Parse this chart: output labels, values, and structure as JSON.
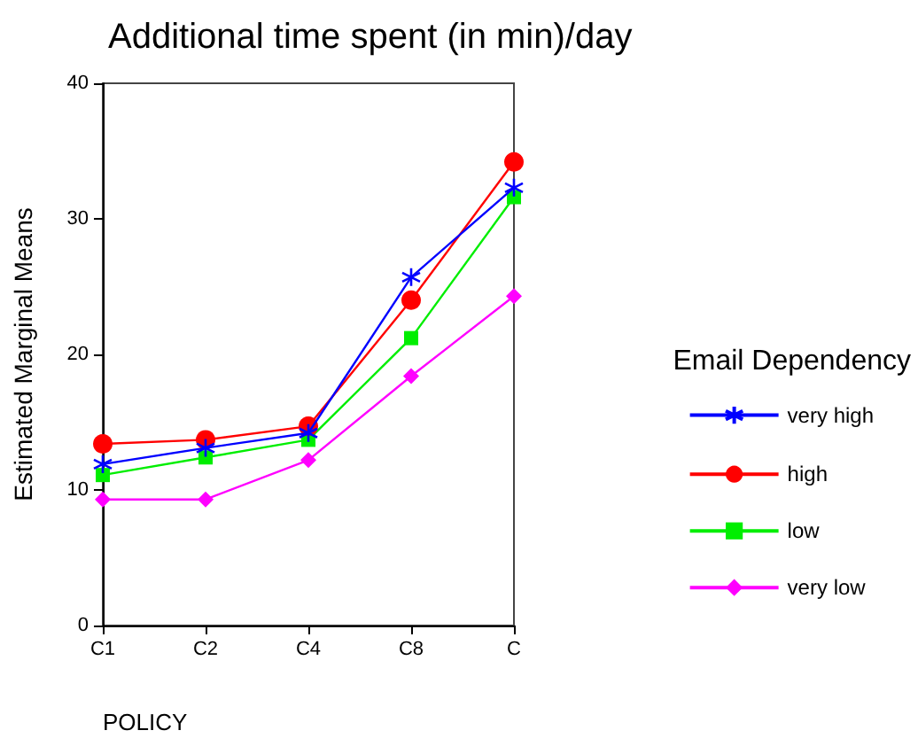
{
  "chart_data": {
    "type": "line",
    "title": "Additional time spent (in min)/day",
    "xlabel": "POLICY",
    "ylabel": "Estimated Marginal Means",
    "legend_title": "Email Dependency",
    "legend": "right",
    "categories": [
      "C1",
      "C2",
      "C4",
      "C8",
      "C"
    ],
    "ylim": [
      0,
      40
    ],
    "yticks": [
      0,
      10,
      20,
      30,
      40
    ],
    "grid": false,
    "series": [
      {
        "name": "very high",
        "color": "#0000ff",
        "marker": "cross",
        "values": [
          11.9,
          13.1,
          14.2,
          25.7,
          32.3
        ]
      },
      {
        "name": "high",
        "color": "#ff0000",
        "marker": "circle",
        "values": [
          13.4,
          13.7,
          14.7,
          24.0,
          34.2
        ]
      },
      {
        "name": "low",
        "color": "#00ee00",
        "marker": "square",
        "values": [
          11.1,
          12.4,
          13.7,
          21.2,
          31.6
        ]
      },
      {
        "name": "very low",
        "color": "#ff00ff",
        "marker": "diamond",
        "values": [
          9.3,
          9.3,
          12.2,
          18.4,
          24.3
        ]
      }
    ]
  }
}
